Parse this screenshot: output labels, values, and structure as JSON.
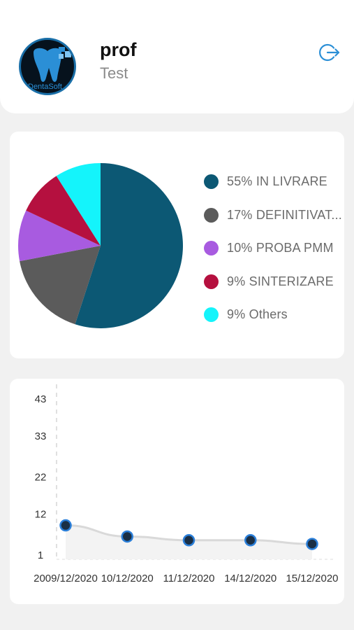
{
  "app": {
    "user_name": "prof",
    "user_role": "Test",
    "logo_text": "DentaSoft",
    "logout_icon": "logout-icon",
    "accent_color": "#2b8fd6"
  },
  "status_chart": {
    "legend": [
      {
        "label": "55% IN LIVRARE",
        "color": "#0c5874"
      },
      {
        "label": "17% DEFINITIVAT...",
        "color": "#5b5b5b"
      },
      {
        "label": "10% PROBA PMM",
        "color": "#a85be0"
      },
      {
        "label": "9% SINTERIZARE",
        "color": "#b5103f"
      },
      {
        "label": "9% Others",
        "color": "#14f4fb"
      }
    ]
  },
  "chart_data": [
    {
      "type": "pie",
      "labels": [
        "IN LIVRARE",
        "DEFINITIVAT...",
        "PROBA PMM",
        "SINTERIZARE",
        "Others"
      ],
      "values": [
        55,
        17,
        10,
        9,
        9
      ],
      "colors": [
        "#0c5874",
        "#5b5b5b",
        "#a85be0",
        "#b5103f",
        "#14f4fb"
      ],
      "legend_position": "right"
    },
    {
      "type": "line",
      "x": [
        "2009/12/2020",
        "10/12/2020",
        "11/12/2020",
        "14/12/2020",
        "15/12/2020"
      ],
      "values": [
        9,
        6,
        5,
        5,
        4
      ],
      "y_ticks": [
        1,
        12,
        22,
        33,
        43
      ],
      "ylim": [
        1,
        43
      ],
      "line_color": "#d9d9d9",
      "marker_color": "#1a2f45",
      "marker_ring_color": "#2b7fd9",
      "grid": false
    }
  ]
}
